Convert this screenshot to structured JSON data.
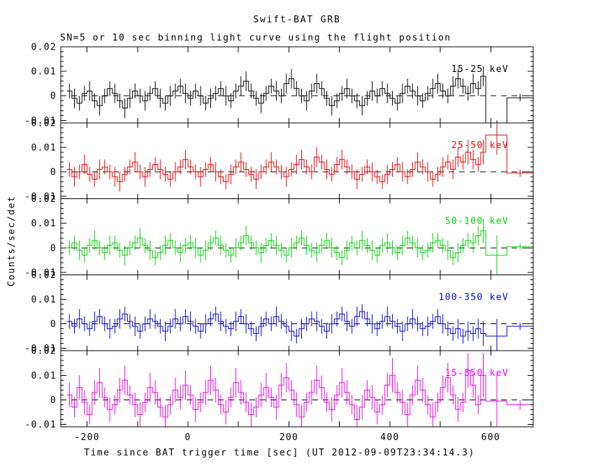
{
  "window": {
    "title": "Swift-BAT GRB",
    "subtitle": "SN=5 or 10 sec binning light curve using the flight position"
  },
  "colors": {
    "background": "#ffffff",
    "frame": "#000000",
    "zero_line": "#000000",
    "band1": "#000000",
    "band2": "#ee0000",
    "band3": "#00d500",
    "band4": "#0000dd",
    "band5": "#ee00ee"
  },
  "chart_data": {
    "type": "line",
    "subtype": "multipanel-step-lightcurve",
    "title": "Swift-BAT GRB",
    "subtitle": "SN=5 or 10 sec binning light curve using the flight position",
    "xlabel": "Time since BAT trigger time [sec] (UT 2012-09-09T23:34:14.3)",
    "ylabel": "Counts/sec/det",
    "x_range": [
      -252,
      684
    ],
    "x_major_ticks": [
      -200,
      -100,
      0,
      100,
      200,
      300,
      400,
      500,
      600
    ],
    "x_tick_labels": [
      {
        "t": -200,
        "label": "-200"
      },
      {
        "t": 0,
        "label": "0"
      },
      {
        "t": 200,
        "label": "200"
      },
      {
        "t": 400,
        "label": "400"
      },
      {
        "t": 600,
        "label": "600"
      }
    ],
    "y_range_milli": [
      -11,
      20
    ],
    "y_major_ticks_milli": [
      -10,
      0,
      10,
      20
    ],
    "y_minor_step_milli": 2,
    "y_tick_labels": [
      {
        "v": 20,
        "label": "0.02"
      },
      {
        "v": 10,
        "label": "0.01"
      },
      {
        "v": 0,
        "label": "0"
      },
      {
        "v": -10,
        "label": "-0.01"
      }
    ],
    "grid": false,
    "legend_position": "in-panel-right",
    "value_unit": 0.001,
    "bin_start": -240,
    "bin_width": 10,
    "panels": [
      {
        "label": "15-25 keV",
        "color": "#000000",
        "values": [
          2,
          -1,
          -3,
          1,
          2,
          -2,
          -4,
          0,
          3,
          1,
          -2,
          -5,
          -1,
          2,
          0,
          -2,
          1,
          3,
          -1,
          -3,
          0,
          2,
          4,
          1,
          -1,
          2,
          0,
          -3,
          -1,
          1,
          3,
          0,
          -2,
          2,
          4,
          6,
          2,
          -1,
          -3,
          1,
          4,
          2,
          0,
          5,
          7,
          3,
          0,
          -2,
          2,
          5,
          3,
          -1,
          -4,
          -2,
          1,
          3,
          0,
          -2,
          -4,
          -1,
          2,
          0,
          3,
          1,
          -1,
          -3,
          1,
          4,
          2,
          0,
          -2,
          1,
          3,
          5,
          2,
          0,
          4,
          7,
          4,
          1,
          5,
          3,
          8
        ],
        "errs": [
          3,
          4,
          3,
          3,
          4,
          3,
          4,
          3,
          3,
          4,
          3,
          4,
          4,
          3,
          3,
          4,
          3,
          3,
          4,
          3,
          4,
          3,
          3,
          4,
          3,
          3,
          4,
          3,
          4,
          3,
          3,
          4,
          3,
          3,
          4,
          4,
          3,
          3,
          4,
          3,
          3,
          4,
          3,
          4,
          4,
          3,
          3,
          4,
          3,
          4,
          3,
          3,
          4,
          3,
          3,
          4,
          3,
          3,
          4,
          3,
          4,
          3,
          3,
          4,
          3,
          3,
          4,
          3,
          3,
          4,
          3,
          3,
          4,
          4,
          3,
          3,
          4,
          4,
          3,
          3,
          4,
          3,
          4
        ],
        "special": {
          "t0": 592,
          "t1": 632,
          "v": -15,
          "e": 5
        },
        "tail": {
          "t0": 632,
          "t1": 684,
          "v": -0.8,
          "e": 1.5
        }
      },
      {
        "label": "25-50 keV",
        "color": "#ee0000",
        "values": [
          1,
          -2,
          0,
          3,
          -1,
          -3,
          1,
          2,
          0,
          -2,
          -4,
          -1,
          2,
          4,
          0,
          -2,
          1,
          3,
          1,
          -1,
          -3,
          0,
          2,
          5,
          2,
          0,
          -2,
          1,
          3,
          0,
          -2,
          -4,
          -1,
          2,
          4,
          1,
          -1,
          -3,
          0,
          2,
          4,
          2,
          0,
          -2,
          1,
          3,
          5,
          2,
          0,
          6,
          4,
          1,
          -1,
          3,
          5,
          2,
          0,
          -3,
          -1,
          2,
          0,
          -2,
          -4,
          -1,
          1,
          3,
          0,
          -2,
          1,
          4,
          2,
          0,
          -3,
          -1,
          2,
          4,
          1,
          6,
          4,
          8,
          5,
          3,
          8
        ],
        "errs": [
          3,
          4,
          3,
          4,
          3,
          3,
          4,
          3,
          3,
          4,
          4,
          3,
          3,
          4,
          3,
          4,
          3,
          3,
          4,
          3,
          3,
          4,
          3,
          4,
          3,
          3,
          4,
          3,
          3,
          4,
          3,
          3,
          4,
          3,
          4,
          3,
          3,
          4,
          3,
          3,
          4,
          3,
          3,
          4,
          3,
          4,
          4,
          3,
          3,
          4,
          3,
          4,
          3,
          3,
          4,
          3,
          3,
          4,
          3,
          3,
          4,
          3,
          3,
          4,
          3,
          3,
          4,
          3,
          3,
          4,
          3,
          4,
          3,
          3,
          4,
          3,
          4,
          4,
          3,
          5,
          4,
          3,
          5
        ],
        "special": {
          "t0": 592,
          "t1": 632,
          "v": 15,
          "e": 8
        },
        "tail": {
          "t0": 632,
          "t1": 684,
          "v": -0.5,
          "e": 1.5
        }
      },
      {
        "label": "50-100 keV",
        "color": "#00d500",
        "values": [
          0,
          2,
          -1,
          -3,
          1,
          3,
          0,
          -2,
          1,
          2,
          -1,
          -3,
          0,
          2,
          4,
          1,
          -1,
          -4,
          -2,
          1,
          3,
          0,
          -2,
          1,
          2,
          0,
          -3,
          -1,
          2,
          4,
          1,
          -1,
          -3,
          0,
          2,
          5,
          2,
          0,
          -2,
          1,
          3,
          1,
          -1,
          -3,
          0,
          2,
          4,
          1,
          -1,
          -2,
          1,
          3,
          0,
          -2,
          -4,
          -1,
          2,
          0,
          3,
          1,
          -1,
          -3,
          1,
          2,
          0,
          -2,
          1,
          4,
          2,
          0,
          -2,
          -1,
          2,
          3,
          1,
          -1,
          -4,
          -2,
          1,
          3,
          2,
          5,
          7
        ],
        "errs": [
          3,
          3,
          4,
          3,
          3,
          4,
          3,
          3,
          4,
          3,
          3,
          4,
          3,
          3,
          4,
          3,
          4,
          3,
          3,
          4,
          3,
          3,
          4,
          3,
          3,
          4,
          3,
          4,
          3,
          3,
          4,
          3,
          3,
          4,
          3,
          4,
          3,
          3,
          4,
          3,
          3,
          4,
          3,
          3,
          4,
          3,
          3,
          4,
          3,
          4,
          3,
          3,
          4,
          3,
          3,
          4,
          3,
          3,
          4,
          3,
          4,
          3,
          3,
          4,
          3,
          3,
          4,
          3,
          3,
          4,
          3,
          3,
          4,
          3,
          3,
          4,
          3,
          4,
          3,
          3,
          4,
          4,
          5
        ],
        "special": {
          "t0": 592,
          "t1": 632,
          "v": -3,
          "e": 8
        },
        "tail": {
          "t0": 632,
          "t1": 684,
          "v": 0.5,
          "e": 1.2
        }
      },
      {
        "label": "100-350 keV",
        "color": "#0000dd",
        "values": [
          1,
          -1,
          2,
          0,
          -2,
          1,
          3,
          0,
          -2,
          -1,
          2,
          4,
          1,
          -1,
          -3,
          0,
          2,
          1,
          -1,
          -3,
          -1,
          2,
          0,
          3,
          1,
          -1,
          -3,
          0,
          2,
          4,
          1,
          -1,
          -2,
          1,
          3,
          0,
          -2,
          -4,
          -1,
          2,
          0,
          3,
          1,
          -1,
          -3,
          -5,
          -2,
          0,
          2,
          1,
          -1,
          -3,
          0,
          2,
          4,
          1,
          -1,
          3,
          5,
          2,
          0,
          -2,
          1,
          3,
          1,
          -1,
          -3,
          0,
          2,
          0,
          -2,
          -1,
          1,
          3,
          0,
          -2,
          -4,
          -2,
          -5,
          -3,
          -4,
          -2,
          -4
        ],
        "errs": [
          3,
          3,
          4,
          3,
          3,
          4,
          3,
          3,
          4,
          3,
          4,
          3,
          3,
          4,
          3,
          3,
          4,
          3,
          3,
          4,
          3,
          4,
          3,
          3,
          4,
          3,
          3,
          4,
          3,
          3,
          4,
          3,
          3,
          4,
          3,
          4,
          3,
          3,
          4,
          3,
          3,
          4,
          3,
          3,
          4,
          3,
          4,
          3,
          3,
          4,
          3,
          3,
          4,
          3,
          3,
          4,
          3,
          4,
          3,
          3,
          4,
          3,
          3,
          4,
          3,
          3,
          4,
          3,
          4,
          3,
          3,
          4,
          3,
          3,
          4,
          3,
          3,
          4,
          3,
          4,
          3,
          4,
          5
        ],
        "special": {
          "t0": 592,
          "t1": 632,
          "v": -5,
          "e": 7
        },
        "tail": {
          "t0": 632,
          "t1": 684,
          "v": -1,
          "e": 1.5
        }
      },
      {
        "label": "15-350 keV",
        "color": "#ee00ee",
        "values": [
          2,
          -3,
          5,
          -1,
          -6,
          3,
          7,
          1,
          -4,
          -2,
          4,
          8,
          2,
          -2,
          -6,
          -1,
          5,
          3,
          -3,
          -7,
          -2,
          4,
          1,
          6,
          2,
          -4,
          -1,
          3,
          8,
          4,
          -2,
          -5,
          1,
          7,
          3,
          -1,
          -6,
          -3,
          2,
          5,
          1,
          -3,
          6,
          9,
          4,
          -2,
          -7,
          -1,
          3,
          8,
          5,
          -1,
          -4,
          2,
          7,
          3,
          -2,
          -8,
          -3,
          4,
          1,
          -5,
          -2,
          6,
          10,
          3,
          -1,
          -6,
          2,
          8,
          4,
          -2,
          -7,
          -1,
          5,
          9,
          2,
          -4,
          -1,
          12,
          6,
          -2,
          10
        ],
        "errs": [
          5,
          4,
          5,
          5,
          4,
          5,
          6,
          4,
          5,
          4,
          5,
          6,
          4,
          5,
          5,
          4,
          6,
          5,
          4,
          5,
          4,
          5,
          5,
          6,
          4,
          5,
          4,
          5,
          6,
          5,
          4,
          5,
          4,
          6,
          5,
          4,
          5,
          4,
          5,
          6,
          4,
          5,
          5,
          6,
          4,
          5,
          5,
          4,
          5,
          6,
          5,
          4,
          5,
          4,
          6,
          5,
          4,
          6,
          5,
          4,
          5,
          5,
          4,
          5,
          7,
          4,
          5,
          5,
          4,
          6,
          5,
          4,
          6,
          4,
          5,
          6,
          4,
          5,
          4,
          7,
          5,
          4,
          9
        ],
        "special": {
          "t0": 592,
          "t1": 632,
          "v": -0.5,
          "e": 11
        },
        "tail": {
          "t0": 632,
          "t1": 684,
          "v": -2,
          "e": 2
        }
      }
    ]
  }
}
